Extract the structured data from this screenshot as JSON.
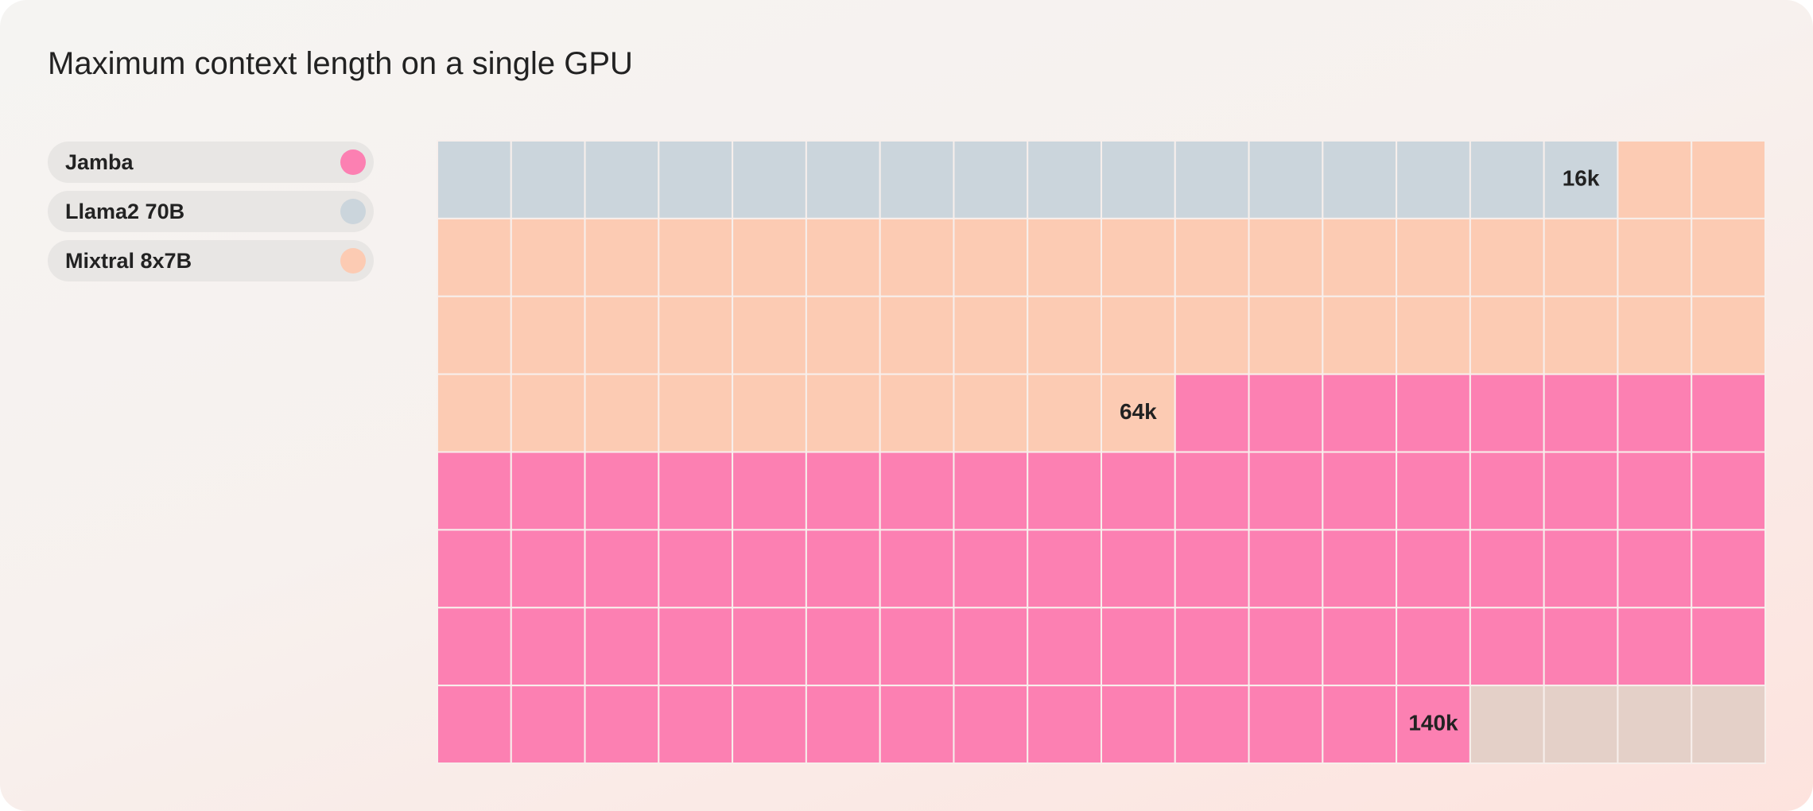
{
  "chart_data": {
    "type": "waffle",
    "title": "Maximum context length on a single GPU",
    "categories": [
      "Jamba",
      "Llama2 70B",
      "Mixtral 8x7B"
    ],
    "values": [
      140,
      16,
      64
    ],
    "value_labels": [
      "140k",
      "16k",
      "64k"
    ],
    "colors": [
      "#fc80b2",
      "#cbd5dc",
      "#fccbb3"
    ]
  }
}
